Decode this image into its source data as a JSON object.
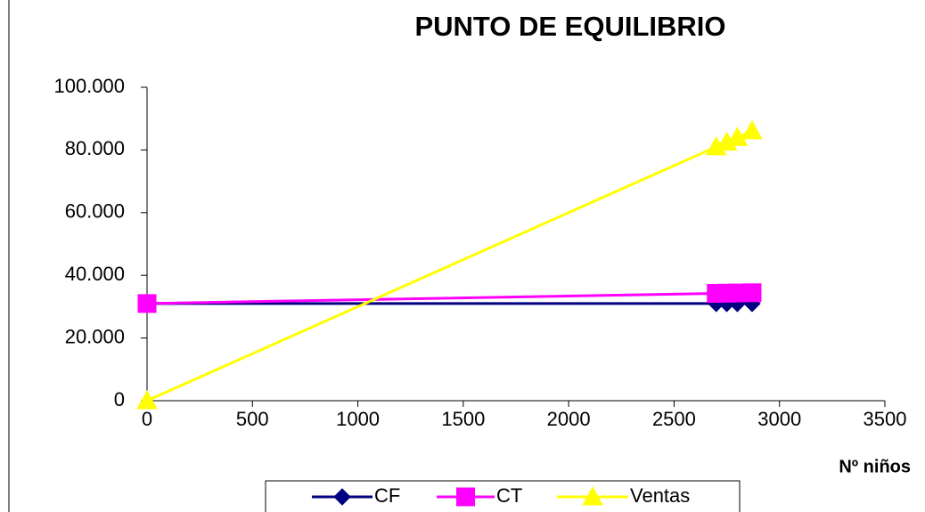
{
  "chart_data": {
    "type": "line",
    "title": "PUNTO DE EQUILIBRIO",
    "x_label": "Nº niños",
    "x": [
      0,
      2700,
      2750,
      2800,
      2870
    ],
    "series": [
      {
        "name": "CF",
        "color": "#000080",
        "marker": "diamond",
        "values": [
          31000,
          31000,
          31000,
          31000,
          31000
        ]
      },
      {
        "name": "CT",
        "color": "#FF00FF",
        "marker": "square",
        "values": [
          31000,
          34240,
          34300,
          34360,
          34444
        ]
      },
      {
        "name": "Ventas",
        "color": "#FFFF00",
        "marker": "triangle",
        "values": [
          0,
          81000,
          82500,
          84000,
          86100
        ]
      }
    ],
    "xlim": [
      0,
      3500
    ],
    "xticks": [
      0,
      500,
      1000,
      1500,
      2000,
      2500,
      3000,
      3500
    ],
    "ylim": [
      0,
      100000
    ],
    "yticks": [
      0,
      {
        "value": 20000,
        "label": "20.000"
      },
      {
        "value": 40000,
        "label": "40.000"
      },
      {
        "value": 60000,
        "label": "60.000"
      },
      {
        "value": 80000,
        "label": "80.000"
      },
      {
        "value": 100000,
        "label": "100.000"
      }
    ],
    "legend": "bottom"
  }
}
